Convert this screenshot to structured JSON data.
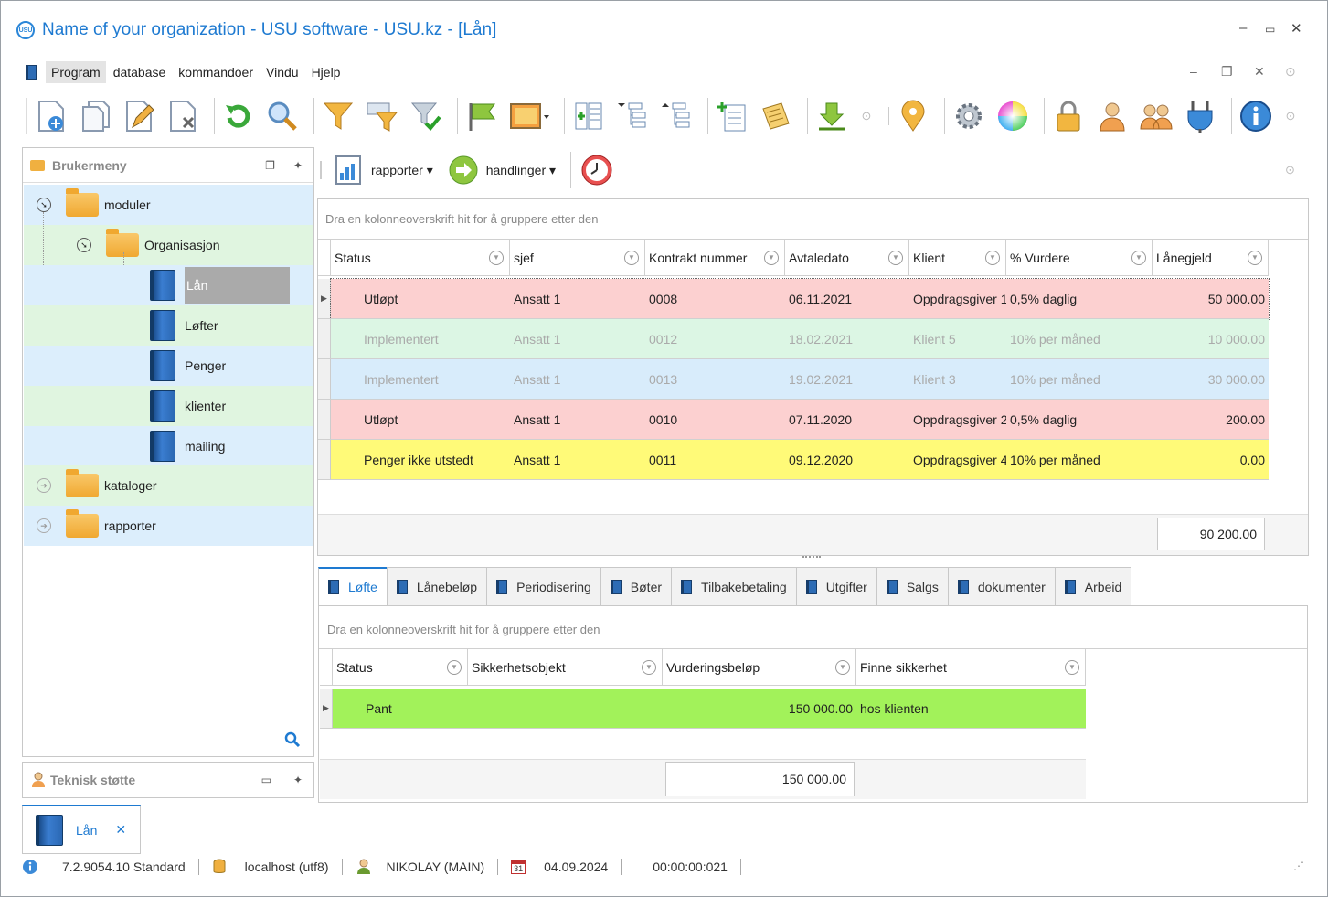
{
  "window": {
    "title": "Name of your organization - USU software - USU.kz - [Lån]",
    "logo_text": "USU"
  },
  "menu": [
    "Program",
    "database",
    "kommandoer",
    "Vindu",
    "Hjelp"
  ],
  "left_panel": {
    "title": "Brukermeny",
    "tree": {
      "moduler": "moduler",
      "organisasjon": "Organisasjon",
      "items": [
        "Lån",
        "Løfter",
        "Penger",
        "klienter",
        "mailing"
      ],
      "kataloger": "kataloger",
      "rapporter": "rapporter"
    },
    "support_title": "Teknisk støtte"
  },
  "subtoolbar": {
    "reports": "rapporter",
    "actions": "handlinger"
  },
  "main_grid": {
    "group_hint": "Dra en kolonneoverskrift hit for å gruppere etter den",
    "columns": [
      "Status",
      "sjef",
      "Kontrakt nummer",
      "Avtaledato",
      "Klient",
      "% Vurdere",
      "Lånegjeld"
    ],
    "rows": [
      {
        "status": "Utløpt",
        "sjef": "Ansatt 1",
        "nr": "0008",
        "dato": "06.11.2021",
        "klient": "Oppdragsgiver 1",
        "vurdere": "0,5% daglig",
        "gjeld": "50 000.00",
        "color": "red"
      },
      {
        "status": "Implementert",
        "sjef": "Ansatt 1",
        "nr": "0012",
        "dato": "18.02.2021",
        "klient": "Klient 5",
        "vurdere": "10% per måned",
        "gjeld": "10 000.00",
        "color": "lgreen"
      },
      {
        "status": "Implementert",
        "sjef": "Ansatt 1",
        "nr": "0013",
        "dato": "19.02.2021",
        "klient": "Klient 3",
        "vurdere": "10% per måned",
        "gjeld": "30 000.00",
        "color": "lblue"
      },
      {
        "status": "Utløpt",
        "sjef": "Ansatt 1",
        "nr": "0010",
        "dato": "07.11.2020",
        "klient": "Oppdragsgiver 2",
        "vurdere": "0,5% daglig",
        "gjeld": "200.00",
        "color": "red"
      },
      {
        "status": "Penger ikke utstedt",
        "sjef": "Ansatt 1",
        "nr": "0011",
        "dato": "09.12.2020",
        "klient": "Oppdragsgiver 4",
        "vurdere": "10% per måned",
        "gjeld": "0.00",
        "color": "yellow"
      }
    ],
    "total": "90 200.00"
  },
  "tabs": [
    "Løfte",
    "Lånebeløp",
    "Periodisering",
    "Bøter",
    "Tilbakebetaling",
    "Utgifter",
    "Salgs",
    "dokumenter",
    "Arbeid"
  ],
  "detail_grid": {
    "group_hint": "Dra en kolonneoverskrift hit for å gruppere etter den",
    "columns": [
      "Status",
      "Sikkerhetsobjekt",
      "Vurderingsbeløp",
      "Finne sikkerhet"
    ],
    "rows": [
      {
        "status": "Pant",
        "objekt": "",
        "belop": "150 000.00",
        "finne": "hos klienten"
      }
    ],
    "total": "150 000.00"
  },
  "bottom_tab": {
    "label": "Lån",
    "close": "✕"
  },
  "statusbar": {
    "version": "7.2.9054.10 Standard",
    "db": "localhost (utf8)",
    "user": "NIKOLAY (MAIN)",
    "date": "04.09.2024",
    "calendar_day": "31",
    "timer": "00:00:00:021"
  },
  "colors": {
    "accent": "#1e7ad1",
    "red_row": "#fcd0d0",
    "yellow_row": "#fffa78",
    "green_row": "#a2f25a"
  }
}
